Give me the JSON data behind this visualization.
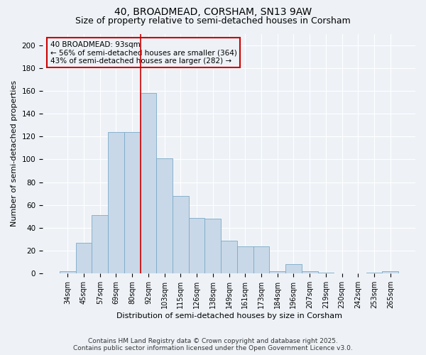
{
  "title1": "40, BROADMEAD, CORSHAM, SN13 9AW",
  "title2": "Size of property relative to semi-detached houses in Corsham",
  "xlabel": "Distribution of semi-detached houses by size in Corsham",
  "ylabel": "Number of semi-detached properties",
  "footer": "Contains HM Land Registry data © Crown copyright and database right 2025.\nContains public sector information licensed under the Open Government Licence v3.0.",
  "bin_labels": [
    "34sqm",
    "45sqm",
    "57sqm",
    "69sqm",
    "80sqm",
    "92sqm",
    "103sqm",
    "115sqm",
    "126sqm",
    "138sqm",
    "149sqm",
    "161sqm",
    "173sqm",
    "184sqm",
    "196sqm",
    "207sqm",
    "219sqm",
    "230sqm",
    "242sqm",
    "253sqm",
    "265sqm"
  ],
  "bar_heights": [
    2,
    27,
    51,
    124,
    124,
    158,
    101,
    68,
    49,
    48,
    29,
    24,
    24,
    2,
    8,
    2,
    1,
    0,
    0,
    1,
    2
  ],
  "bar_color": "#c8d8e8",
  "bar_edgecolor": "#7aaac8",
  "vline_color": "#cc0000",
  "vline_x_index": 5,
  "annotation_text": "40 BROADMEAD: 93sqm\n← 56% of semi-detached houses are smaller (364)\n43% of semi-detached houses are larger (282) →",
  "annotation_box_edgecolor": "#cc0000",
  "ylim": [
    0,
    210
  ],
  "yticks": [
    0,
    20,
    40,
    60,
    80,
    100,
    120,
    140,
    160,
    180,
    200
  ],
  "background_color": "#eef2f7",
  "grid_color": "#ffffff",
  "title_fontsize": 10,
  "subtitle_fontsize": 9,
  "axis_label_fontsize": 8,
  "tick_fontsize": 7,
  "annotation_fontsize": 7.5,
  "footer_fontsize": 6.5
}
